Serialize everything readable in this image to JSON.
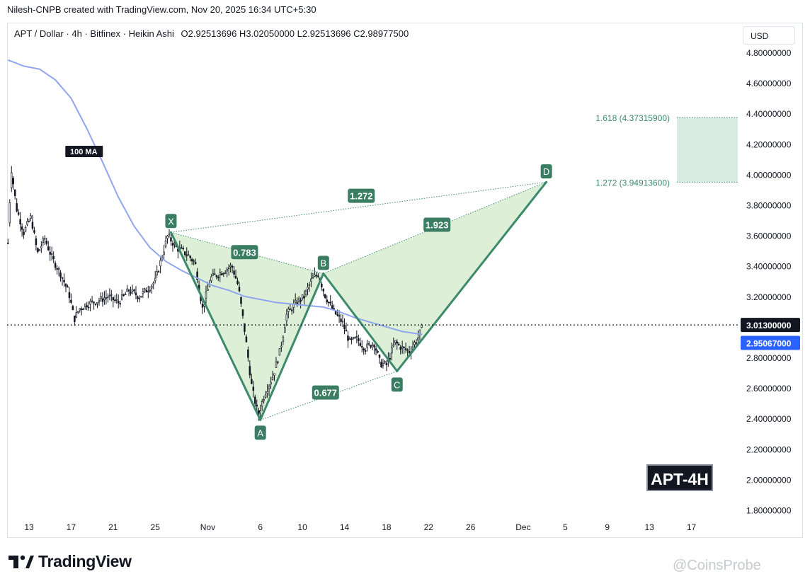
{
  "header": {
    "attribution": "Nilesh-CNPB created with TradingView.com, Nov 20, 2025 16:34 UTC+5:30"
  },
  "symbol": {
    "text": "APT / Dollar · 4h · Bitfinex · Heikin Ashi",
    "ohlc": "O2.92513696  H3.02050000  L2.92513696  C2.98977500"
  },
  "currency": "USD",
  "watermark_label": "APT-4H",
  "brand": {
    "logo_text": "TradingView",
    "watermark": "@CoinsProbe"
  },
  "colors": {
    "pattern_line": "#3c8a6b",
    "pattern_fill": "#d7eccf",
    "label_bg": "#3a7d63",
    "ma_line": "#8fa6ef",
    "ma_badge": "#2962ff",
    "price_badge": "#131722",
    "target_zone": "#d9eae1",
    "candle": "#131722"
  },
  "chart_data": {
    "type": "candlestick",
    "style": "Heikin Ashi",
    "timeframe": "4h",
    "y_axis": {
      "range": [
        1.78,
        4.9
      ],
      "ticks": [
        "4.80000000",
        "4.60000000",
        "4.40000000",
        "4.20000000",
        "4.00000000",
        "3.80000000",
        "3.60000000",
        "3.40000000",
        "3.20000000",
        "3.00000000",
        "2.80000000",
        "2.60000000",
        "2.40000000",
        "2.20000000",
        "2.00000000",
        "1.80000000"
      ],
      "tick_values": [
        4.8,
        4.6,
        4.4,
        4.2,
        4.0,
        3.8,
        3.6,
        3.4,
        3.2,
        3.0,
        2.8,
        2.6,
        2.4,
        2.2,
        2.0,
        1.8
      ]
    },
    "x_axis": {
      "range_days": [
        0,
        69
      ],
      "ticks": [
        {
          "label": "13",
          "day": 2
        },
        {
          "label": "17",
          "day": 6
        },
        {
          "label": "21",
          "day": 10
        },
        {
          "label": "25",
          "day": 14
        },
        {
          "label": "Nov",
          "day": 19
        },
        {
          "label": "6",
          "day": 24
        },
        {
          "label": "10",
          "day": 28
        },
        {
          "label": "14",
          "day": 32
        },
        {
          "label": "18",
          "day": 36
        },
        {
          "label": "22",
          "day": 40
        },
        {
          "label": "26",
          "day": 44
        },
        {
          "label": "Dec",
          "day": 49
        },
        {
          "label": "5",
          "day": 53
        },
        {
          "label": "9",
          "day": 57
        },
        {
          "label": "13",
          "day": 61
        },
        {
          "label": "17",
          "day": 65
        }
      ]
    },
    "price_series_keypoints": [
      [
        0,
        3.55
      ],
      [
        0.3,
        4.05
      ],
      [
        0.8,
        3.78
      ],
      [
        1.5,
        3.62
      ],
      [
        2.2,
        3.72
      ],
      [
        2.8,
        3.48
      ],
      [
        3.5,
        3.58
      ],
      [
        4.2,
        3.45
      ],
      [
        5,
        3.35
      ],
      [
        5.8,
        3.22
      ],
      [
        6.3,
        3.05
      ],
      [
        6.8,
        3.12
      ],
      [
        7.5,
        3.15
      ],
      [
        8.5,
        3.17
      ],
      [
        9.5,
        3.2
      ],
      [
        10.5,
        3.16
      ],
      [
        11.5,
        3.24
      ],
      [
        12.5,
        3.2
      ],
      [
        13.3,
        3.25
      ],
      [
        14,
        3.3
      ],
      [
        14.6,
        3.45
      ],
      [
        15.2,
        3.6
      ],
      [
        16,
        3.52
      ],
      [
        17,
        3.48
      ],
      [
        17.8,
        3.42
      ],
      [
        18.5,
        3.12
      ],
      [
        19.3,
        3.32
      ],
      [
        20.3,
        3.36
      ],
      [
        21.3,
        3.4
      ],
      [
        21.9,
        3.27
      ],
      [
        22.5,
        2.98
      ],
      [
        23.2,
        2.6
      ],
      [
        23.8,
        2.42
      ],
      [
        24.4,
        2.56
      ],
      [
        25.2,
        2.68
      ],
      [
        25.9,
        2.85
      ],
      [
        26.5,
        3.08
      ],
      [
        27.3,
        3.15
      ],
      [
        28.2,
        3.2
      ],
      [
        28.8,
        3.3
      ],
      [
        29.5,
        3.35
      ],
      [
        30.2,
        3.2
      ],
      [
        31,
        3.1
      ],
      [
        31.8,
        3.03
      ],
      [
        32.5,
        2.9
      ],
      [
        33.2,
        2.92
      ],
      [
        34,
        2.86
      ],
      [
        34.8,
        2.9
      ],
      [
        35.4,
        2.76
      ],
      [
        36,
        2.75
      ],
      [
        36.8,
        2.9
      ],
      [
        37.5,
        2.86
      ],
      [
        38.2,
        2.84
      ],
      [
        39,
        2.93
      ],
      [
        39.4,
        3.0
      ]
    ],
    "moving_average": {
      "label": "100 MA",
      "value_badge": "2.95067000",
      "value": 2.95067,
      "points": [
        [
          0,
          4.75
        ],
        [
          1.5,
          4.71
        ],
        [
          3,
          4.69
        ],
        [
          4.5,
          4.62
        ],
        [
          6,
          4.5
        ],
        [
          7.5,
          4.3
        ],
        [
          9,
          4.08
        ],
        [
          10.5,
          3.85
        ],
        [
          12,
          3.66
        ],
        [
          13.5,
          3.52
        ],
        [
          15,
          3.43
        ],
        [
          16.5,
          3.37
        ],
        [
          18,
          3.32
        ],
        [
          19.5,
          3.27
        ],
        [
          21,
          3.24
        ],
        [
          22.5,
          3.2
        ],
        [
          24,
          3.18
        ],
        [
          25.5,
          3.16
        ],
        [
          27,
          3.15
        ],
        [
          28.5,
          3.14
        ],
        [
          30,
          3.13
        ],
        [
          31.5,
          3.1
        ],
        [
          33,
          3.06
        ],
        [
          34.5,
          3.03
        ],
        [
          36,
          3.0
        ],
        [
          37.5,
          2.97
        ],
        [
          39.4,
          2.95
        ]
      ]
    },
    "current_price": {
      "label": "3.01300000",
      "value": 3.013
    },
    "harmonic_pattern": {
      "points": [
        {
          "name": "X",
          "day": 15.5,
          "price": 3.62
        },
        {
          "name": "A",
          "day": 24.0,
          "price": 2.39
        },
        {
          "name": "B",
          "day": 30.0,
          "price": 3.35
        },
        {
          "name": "C",
          "day": 37.0,
          "price": 2.71
        },
        {
          "name": "D",
          "day": 51.2,
          "price": 3.95
        }
      ],
      "ratios": [
        {
          "label": "0.783",
          "day": 22.5,
          "price": 3.49
        },
        {
          "label": "0.677",
          "day": 30.2,
          "price": 2.57
        },
        {
          "label": "1.923",
          "day": 40.8,
          "price": 3.67
        },
        {
          "label": "1.272",
          "day": 33.6,
          "price": 3.86
        }
      ]
    },
    "target_zone": {
      "low_label": "1.272 (3.94913600)",
      "high_label": "1.618 (4.37315900)",
      "low": 3.949136,
      "high": 4.373159
    }
  }
}
